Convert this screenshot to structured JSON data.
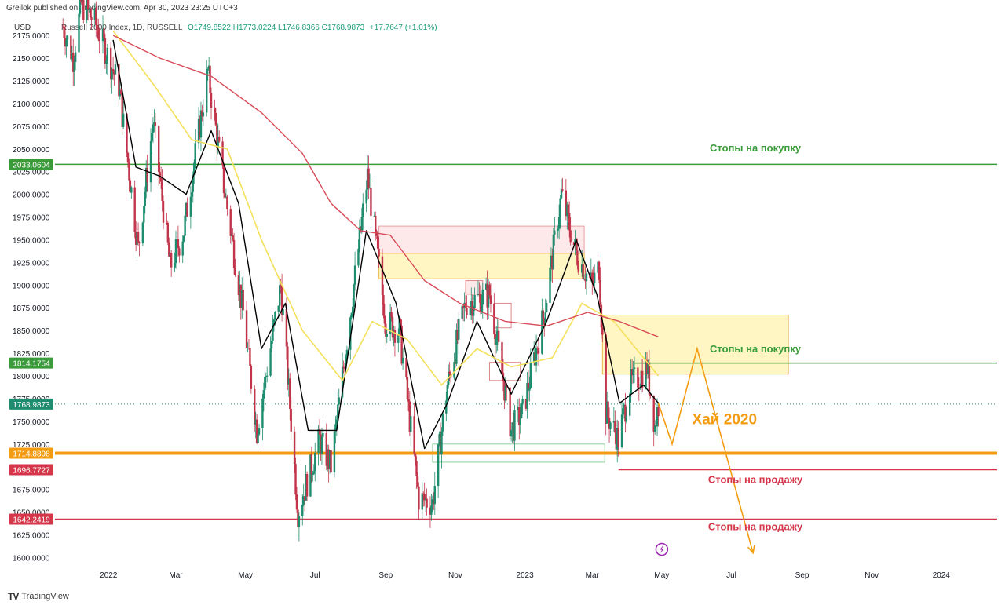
{
  "header": {
    "published_by": "Greilok published on TradingView.com, Apr 30, 2023 23:25 UTC+3",
    "currency": "USD",
    "instrument": "Russell 2000 Index, 1D, RUSSELL",
    "ohlc": "O1749.8522 H1773.0224 L1746.8366 C1768.9873",
    "change": "+17.7647 (+1.01%)"
  },
  "footer": {
    "logo_mark": "TV",
    "logo_text": "TradingView"
  },
  "colors": {
    "up": "#1e8c6e",
    "down": "#c2344a",
    "sma_fast": "#000000",
    "sma_mid": "#f4e05a",
    "sma_slow": "#d84b58",
    "support_green": "#3a9b3a",
    "level_red": "#d5364a",
    "level_orange": "#f39c12",
    "zone_yellow": "#fff3b0",
    "zone_pink": "#fde1e3"
  },
  "chart_data": {
    "type": "candlestick",
    "title": "Russell 2000 Index, 1D, RUSSELL",
    "ylim": [
      1590,
      2195
    ],
    "y_ticks": [
      1600,
      1625,
      1650,
      1675,
      1700,
      1725,
      1750,
      1775,
      1800,
      1825,
      1850,
      1875,
      1900,
      1925,
      1950,
      1975,
      2000,
      2025,
      2050,
      2075,
      2100,
      2125,
      2150,
      2175
    ],
    "y_tick_labels": [
      "1600.0000",
      "1625.0000",
      "1650.0000",
      "1675.0000",
      "1700.0000",
      "1725.0000",
      "1750.0000",
      "1775.0000",
      "1800.0000",
      "1825.0000",
      "1850.0000",
      "1875.0000",
      "1900.0000",
      "1925.0000",
      "1950.0000",
      "1975.0000",
      "2000.0000",
      "2025.0000",
      "2050.0000",
      "2075.0000",
      "2100.0000",
      "2125.0000",
      "2150.0000",
      "2175.0000"
    ],
    "x_tick_labels": [
      {
        "date": "2022-01-01",
        "label": "2022"
      },
      {
        "date": "2022-03-01",
        "label": "Mar"
      },
      {
        "date": "2022-05-01",
        "label": "May"
      },
      {
        "date": "2022-07-01",
        "label": "Jul"
      },
      {
        "date": "2022-09-01",
        "label": "Sep"
      },
      {
        "date": "2022-11-01",
        "label": "Nov"
      },
      {
        "date": "2023-01-01",
        "label": "2023"
      },
      {
        "date": "2023-03-01",
        "label": "Mar"
      },
      {
        "date": "2023-05-01",
        "label": "May"
      },
      {
        "date": "2023-07-01",
        "label": "Jul"
      },
      {
        "date": "2023-09-01",
        "label": "Sep"
      },
      {
        "date": "2023-11-01",
        "label": "Nov"
      },
      {
        "date": "2024-01-01",
        "label": "2024"
      }
    ],
    "price_path": [
      {
        "date": "2021-11-22",
        "value": 2185
      },
      {
        "date": "2021-12-01",
        "value": 2150
      },
      {
        "date": "2021-12-08",
        "value": 2210
      },
      {
        "date": "2021-12-20",
        "value": 2190
      },
      {
        "date": "2022-01-10",
        "value": 2120
      },
      {
        "date": "2022-01-27",
        "value": 1940
      },
      {
        "date": "2022-02-09",
        "value": 2080
      },
      {
        "date": "2022-02-24",
        "value": 1920
      },
      {
        "date": "2022-03-08",
        "value": 1960
      },
      {
        "date": "2022-03-29",
        "value": 2135
      },
      {
        "date": "2022-04-12",
        "value": 2010
      },
      {
        "date": "2022-04-29",
        "value": 1870
      },
      {
        "date": "2022-05-11",
        "value": 1740
      },
      {
        "date": "2022-06-01",
        "value": 1900
      },
      {
        "date": "2022-06-16",
        "value": 1650
      },
      {
        "date": "2022-07-05",
        "value": 1730
      },
      {
        "date": "2022-07-15",
        "value": 1700
      },
      {
        "date": "2022-08-16",
        "value": 2020
      },
      {
        "date": "2022-09-01",
        "value": 1860
      },
      {
        "date": "2022-09-13",
        "value": 1850
      },
      {
        "date": "2022-09-30",
        "value": 1665
      },
      {
        "date": "2022-10-12",
        "value": 1660
      },
      {
        "date": "2022-10-25",
        "value": 1790
      },
      {
        "date": "2022-11-10",
        "value": 1880
      },
      {
        "date": "2022-12-01",
        "value": 1890
      },
      {
        "date": "2022-12-20",
        "value": 1740
      },
      {
        "date": "2022-12-30",
        "value": 1760
      },
      {
        "date": "2023-01-18",
        "value": 1870
      },
      {
        "date": "2023-02-02",
        "value": 2000
      },
      {
        "date": "2023-02-15",
        "value": 1935
      },
      {
        "date": "2023-03-01",
        "value": 1900
      },
      {
        "date": "2023-03-07",
        "value": 1920
      },
      {
        "date": "2023-03-13",
        "value": 1760
      },
      {
        "date": "2023-03-24",
        "value": 1730
      },
      {
        "date": "2023-04-03",
        "value": 1790
      },
      {
        "date": "2023-04-12",
        "value": 1800
      },
      {
        "date": "2023-04-18",
        "value": 1810
      },
      {
        "date": "2023-04-25",
        "value": 1745
      },
      {
        "date": "2023-04-28",
        "value": 1768.99
      }
    ],
    "series": [
      {
        "type": "line",
        "color": "#000000",
        "points": [
          {
            "date": "2022-01-05",
            "value": 2170
          },
          {
            "date": "2022-01-25",
            "value": 2030
          },
          {
            "date": "2022-02-15",
            "value": 2020
          },
          {
            "date": "2022-03-10",
            "value": 2000
          },
          {
            "date": "2022-04-01",
            "value": 2070
          },
          {
            "date": "2022-04-25",
            "value": 1990
          },
          {
            "date": "2022-05-15",
            "value": 1830
          },
          {
            "date": "2022-06-05",
            "value": 1880
          },
          {
            "date": "2022-06-25",
            "value": 1740
          },
          {
            "date": "2022-07-20",
            "value": 1740
          },
          {
            "date": "2022-08-15",
            "value": 1960
          },
          {
            "date": "2022-09-10",
            "value": 1880
          },
          {
            "date": "2022-10-05",
            "value": 1720
          },
          {
            "date": "2022-10-25",
            "value": 1770
          },
          {
            "date": "2022-11-20",
            "value": 1860
          },
          {
            "date": "2022-12-20",
            "value": 1780
          },
          {
            "date": "2023-01-20",
            "value": 1860
          },
          {
            "date": "2023-02-15",
            "value": 1950
          },
          {
            "date": "2023-03-05",
            "value": 1890
          },
          {
            "date": "2023-03-25",
            "value": 1770
          },
          {
            "date": "2023-04-15",
            "value": 1790
          },
          {
            "date": "2023-04-28",
            "value": 1770
          }
        ]
      },
      {
        "type": "line",
        "color": "#f4e05a",
        "points": [
          {
            "date": "2022-01-05",
            "value": 2180
          },
          {
            "date": "2022-02-10",
            "value": 2120
          },
          {
            "date": "2022-03-15",
            "value": 2060
          },
          {
            "date": "2022-04-15",
            "value": 2050
          },
          {
            "date": "2022-05-15",
            "value": 1950
          },
          {
            "date": "2022-06-20",
            "value": 1850
          },
          {
            "date": "2022-07-25",
            "value": 1795
          },
          {
            "date": "2022-08-20",
            "value": 1860
          },
          {
            "date": "2022-09-20",
            "value": 1840
          },
          {
            "date": "2022-10-20",
            "value": 1790
          },
          {
            "date": "2022-11-20",
            "value": 1830
          },
          {
            "date": "2022-12-20",
            "value": 1810
          },
          {
            "date": "2023-01-25",
            "value": 1820
          },
          {
            "date": "2023-02-20",
            "value": 1880
          },
          {
            "date": "2023-03-20",
            "value": 1860
          },
          {
            "date": "2023-04-28",
            "value": 1800
          }
        ]
      },
      {
        "type": "line",
        "color": "#d84b58",
        "points": [
          {
            "date": "2022-01-05",
            "value": 2175
          },
          {
            "date": "2022-02-15",
            "value": 2150
          },
          {
            "date": "2022-04-01",
            "value": 2130
          },
          {
            "date": "2022-05-15",
            "value": 2090
          },
          {
            "date": "2022-06-20",
            "value": 2045
          },
          {
            "date": "2022-07-15",
            "value": 1990
          },
          {
            "date": "2022-08-10",
            "value": 1960
          },
          {
            "date": "2022-09-05",
            "value": 1955
          },
          {
            "date": "2022-10-05",
            "value": 1905
          },
          {
            "date": "2022-11-05",
            "value": 1880
          },
          {
            "date": "2022-12-15",
            "value": 1860
          },
          {
            "date": "2023-01-20",
            "value": 1855
          },
          {
            "date": "2023-02-25",
            "value": 1870
          },
          {
            "date": "2023-03-25",
            "value": 1860
          },
          {
            "date": "2023-04-28",
            "value": 1843
          }
        ]
      }
    ],
    "horizontal_levels": [
      {
        "value": 2033.0604,
        "label": "2033.0604",
        "color": "#3a9b3a",
        "start": "2021-11-15"
      },
      {
        "value": 1814.1754,
        "label": "1814.1754",
        "color": "#3a9b3a",
        "start": "2023-04-06"
      },
      {
        "value": 1768.9873,
        "label": "1768.9873",
        "color": "#1e8c6e",
        "start": "2021-11-15",
        "dotted": true
      },
      {
        "value": 1714.8898,
        "label": "1714.8898",
        "color": "#f39c12",
        "start": "2021-11-15",
        "thick": true
      },
      {
        "value": 1696.7727,
        "label": "1696.7727",
        "color": "#d5364a",
        "start": "2023-03-24"
      },
      {
        "value": 1642.2419,
        "label": "1642.2419",
        "color": "#d5364a",
        "start": "2021-11-15"
      }
    ],
    "zones": [
      {
        "from": "2022-08-26",
        "to": "2023-02-22",
        "low": 1935,
        "high": 1965,
        "color": "#fde1e3",
        "stroke": "#e8a0a6"
      },
      {
        "from": "2022-08-26",
        "to": "2023-02-22",
        "low": 1907,
        "high": 1935,
        "color": "#fff3b0",
        "stroke": "#e8b84a"
      },
      {
        "from": "2023-03-10",
        "to": "2023-08-20",
        "low": 1802,
        "high": 1867,
        "color": "#fff3b0",
        "stroke": "#e8b84a"
      },
      {
        "from": "2022-10-12",
        "to": "2023-03-12",
        "low": 1705,
        "high": 1725,
        "color": "none",
        "stroke": "#8fd19e"
      },
      {
        "from": "2022-11-10",
        "to": "2022-11-25",
        "low": 1890,
        "high": 1905,
        "color": "#fde1e3",
        "stroke": "#d88"
      },
      {
        "from": "2022-12-05",
        "to": "2022-12-20",
        "low": 1853,
        "high": 1880,
        "color": "none",
        "stroke": "#d88"
      },
      {
        "from": "2022-12-01",
        "to": "2022-12-28",
        "low": 1795,
        "high": 1815,
        "color": "none",
        "stroke": "#d88"
      }
    ],
    "annotations": [
      {
        "text": "Стопы на покупку",
        "date": "2023-07-22",
        "value": 2047,
        "color": "#3a9b3a"
      },
      {
        "text": "Стопы на покупку",
        "date": "2023-07-22",
        "value": 1826,
        "color": "#3a9b3a"
      },
      {
        "text": "Хай 2020",
        "date": "2023-06-25",
        "value": 1747,
        "color": "#f39c12",
        "large": true
      },
      {
        "text": "Стопы на продажу",
        "date": "2023-07-22",
        "value": 1682,
        "color": "#d5364a"
      },
      {
        "text": "Стопы на продажу",
        "date": "2023-07-22",
        "value": 1630,
        "color": "#d5364a"
      }
    ],
    "projection": [
      {
        "date": "2023-04-28",
        "value": 1770
      },
      {
        "date": "2023-05-10",
        "value": 1725
      },
      {
        "date": "2023-06-01",
        "value": 1830
      },
      {
        "date": "2023-07-20",
        "value": 1605
      }
    ],
    "projection_color": "#f39c12"
  }
}
